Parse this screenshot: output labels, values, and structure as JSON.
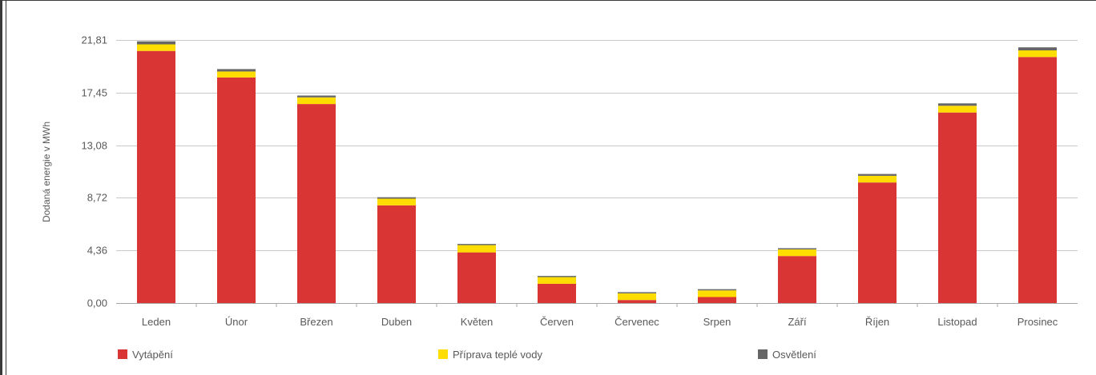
{
  "chart_data": {
    "type": "bar",
    "stacked": true,
    "ylabel": "Dodaná energie v MWh",
    "xlabel": "",
    "ylim": [
      0,
      21.81
    ],
    "yticks": [
      "0,00",
      "4,36",
      "8,72",
      "13,08",
      "17,45",
      "21,81"
    ],
    "grid": true,
    "legend_position": "bottom",
    "categories": [
      "Leden",
      "Únor",
      "Březen",
      "Duben",
      "Květen",
      "Červen",
      "Červenec",
      "Srpen",
      "Září",
      "Říjen",
      "Listopad",
      "Prosinec"
    ],
    "series": [
      {
        "name": "Vytápění",
        "color": "#d93535",
        "values": [
          20.9,
          18.7,
          16.5,
          8.1,
          4.2,
          1.6,
          0.25,
          0.5,
          3.9,
          10.0,
          15.8,
          20.4
        ]
      },
      {
        "name": "Příprava teplé vody",
        "color": "#ffdd00",
        "values": [
          0.55,
          0.5,
          0.55,
          0.55,
          0.6,
          0.55,
          0.55,
          0.55,
          0.55,
          0.55,
          0.55,
          0.55
        ]
      },
      {
        "name": "Osvětlení",
        "color": "#666666",
        "values": [
          0.25,
          0.2,
          0.15,
          0.12,
          0.1,
          0.1,
          0.1,
          0.1,
          0.1,
          0.15,
          0.2,
          0.25
        ]
      }
    ]
  }
}
